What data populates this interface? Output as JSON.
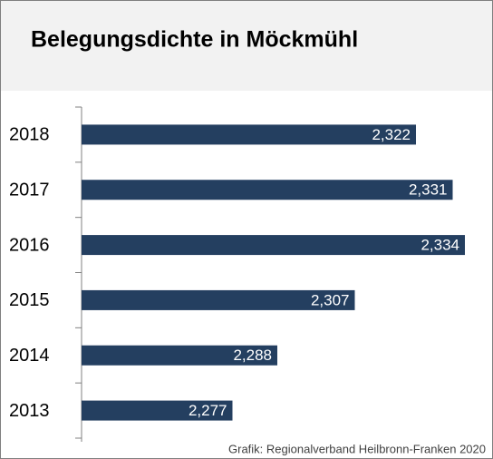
{
  "chart_data": {
    "type": "barh",
    "title": "Belegungsdichte in Möckmühl",
    "categories": [
      "2018",
      "2017",
      "2016",
      "2015",
      "2014",
      "2013"
    ],
    "values": [
      2.322,
      2.331,
      2.334,
      2.307,
      2.288,
      2.277
    ],
    "value_labels": [
      "2,322",
      "2,331",
      "2,334",
      "2,307",
      "2,288",
      "2,277"
    ],
    "color": "#243f60",
    "xlim": [
      2.24,
      2.34
    ],
    "source": "Grafik: Regionalverband Heilbronn-Franken 2020"
  }
}
